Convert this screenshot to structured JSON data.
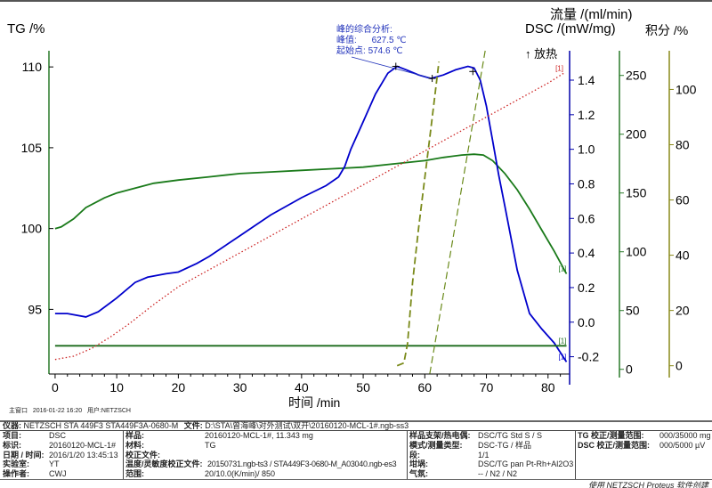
{
  "chart_data": {
    "type": "line",
    "xlabel": "时间 /min",
    "xlim": [
      -1,
      83.5
    ],
    "xticks": [
      0,
      10,
      20,
      30,
      40,
      50,
      60,
      70,
      80
    ],
    "axes": {
      "tg": {
        "label": "TG /%",
        "lim": [
          91,
          111
        ],
        "ticks": [
          95,
          100,
          105,
          110
        ],
        "color": "#000000"
      },
      "dsc": {
        "label": "DSC /(mW/mg)",
        "lim": [
          -0.3,
          1.57
        ],
        "ticks": [
          -0.2,
          0.0,
          0.2,
          0.4,
          0.6,
          0.8,
          1.0,
          1.2,
          1.4
        ],
        "color": "#0000aa",
        "exo_label": "↑ 放热"
      },
      "flow": {
        "label": "流量 /(ml/min)",
        "lim": [
          -4,
          271
        ],
        "ticks": [
          0,
          50,
          100,
          150,
          200,
          250
        ],
        "color": "#2a7a2a"
      },
      "integral": {
        "label": "积分 /%",
        "lim": [
          -3,
          114
        ],
        "ticks": [
          0,
          20,
          40,
          60,
          80,
          100
        ],
        "color": "#8a8a1a"
      }
    },
    "series": [
      {
        "name": "TG",
        "axis": "tg",
        "color": "#1a7a1a",
        "style": "solid",
        "marker": "[1]",
        "x": [
          0,
          1,
          3,
          5,
          8,
          10,
          13,
          16,
          20,
          25,
          30,
          35,
          40,
          45,
          50,
          55,
          60,
          63,
          66,
          68,
          69.5,
          71,
          73,
          75,
          77,
          79,
          81,
          83
        ],
        "y": [
          100,
          100.1,
          100.6,
          101.3,
          101.9,
          102.2,
          102.5,
          102.8,
          103.0,
          103.2,
          103.4,
          103.5,
          103.6,
          103.7,
          103.8,
          104.0,
          104.2,
          104.4,
          104.55,
          104.6,
          104.55,
          104.2,
          103.4,
          102.4,
          101.2,
          99.9,
          98.6,
          97.2
        ]
      },
      {
        "name": "DSC",
        "axis": "dsc",
        "color": "#0000cc",
        "style": "solid",
        "marker": "[1]",
        "x": [
          0,
          2,
          5,
          7,
          10,
          13,
          15,
          18,
          20,
          23,
          25,
          30,
          35,
          40,
          44,
          46,
          47,
          48,
          50,
          52,
          54,
          55.5,
          57,
          59,
          61,
          63,
          65,
          67,
          68,
          69,
          70,
          71,
          72,
          73,
          75,
          77,
          79,
          81,
          83
        ],
        "y": [
          0.05,
          0.05,
          0.03,
          0.06,
          0.14,
          0.23,
          0.26,
          0.28,
          0.29,
          0.34,
          0.38,
          0.5,
          0.62,
          0.72,
          0.79,
          0.84,
          0.9,
          1.0,
          1.16,
          1.32,
          1.44,
          1.48,
          1.46,
          1.43,
          1.41,
          1.43,
          1.46,
          1.48,
          1.47,
          1.4,
          1.25,
          1.05,
          0.85,
          0.67,
          0.3,
          0.05,
          -0.04,
          -0.12,
          -0.23
        ]
      },
      {
        "name": "流量",
        "axis": "flow",
        "color": "#1a6a1a",
        "style": "solid",
        "marker": "[1]",
        "x": [
          0,
          83
        ],
        "y": [
          20,
          20
        ]
      },
      {
        "name": "温度",
        "axis": "tg",
        "color": "#cc2222",
        "style": "dotted",
        "marker": "[1]",
        "x": [
          0,
          3,
          6,
          9,
          12,
          16,
          20,
          30,
          40,
          50,
          60,
          70,
          80,
          82.5
        ],
        "y": [
          91.9,
          92.1,
          92.6,
          93.3,
          94.1,
          95.3,
          96.4,
          98.5,
          100.6,
          102.7,
          104.8,
          106.9,
          109.0,
          109.6
        ]
      },
      {
        "name": "积分",
        "axis": "integral",
        "color": "#7a8a1a",
        "style": "dashed",
        "marker": "",
        "x": [
          55.5,
          56.6,
          57.2,
          58,
          59,
          60,
          61,
          62.3
        ],
        "y": [
          0,
          1,
          8,
          30,
          50,
          68,
          86,
          110
        ]
      }
    ],
    "annotation": {
      "title": "峰的综合分析:",
      "peak_label": "峰值:",
      "peak_value": "627.5 ℃",
      "onset_label": "起始点:",
      "onset_value": "574.6 ℃",
      "peak_time": 61.2,
      "onset_time": 55.3
    }
  },
  "header": {
    "window": "主窗口",
    "datetime": "2016-01-22 16:20",
    "user_label": "用户:",
    "user": "NETZSCH"
  },
  "info": {
    "instrument_label": "仪器:",
    "instrument": "NETZSCH STA 449F3 STA449F3A-0680-M",
    "file_label": "文件:",
    "file": "D:\\STA\\曾海峰\\对外测试\\双开\\20160120-MCL-1#.ngb-ss3",
    "col1": [
      {
        "k": "项目:",
        "v": "DSC"
      },
      {
        "k": "标识:",
        "v": "20160120-MCL-1#"
      },
      {
        "k": "日期 / 时间:",
        "v": "2016/1/20 13:45:13"
      },
      {
        "k": "实验室:",
        "v": "YT"
      },
      {
        "k": "操作者:",
        "v": "CWJ"
      }
    ],
    "col2": [
      {
        "k": "样品:",
        "v": "20160120-MCL-1#, 11.343 mg"
      },
      {
        "k": "材料:",
        "v": "TG"
      },
      {
        "k": "校正文件:",
        "v": ""
      },
      {
        "k": "温度/灵敏度校正文件:",
        "v": "20150731.ngb-ts3 / STA449F3-0680-M_A03040.ngb-es3"
      },
      {
        "k": "范围:",
        "v": "20/10.0(K/min)/ 850"
      }
    ],
    "col3": [
      {
        "k": "样品支架/热电偶:",
        "v": "DSC/TG Std S / S"
      },
      {
        "k": "模式/测量类型:",
        "v": "DSC-TG / 样品"
      },
      {
        "k": "段:",
        "v": "1/1"
      },
      {
        "k": "坩埚:",
        "v": "DSC/TG pan Pt-Rh+Al2O3"
      },
      {
        "k": "气氛:",
        "v": "-- / N2 / N2"
      }
    ],
    "col4": [
      {
        "k": "TG 校正/测量范围:",
        "v": "000/35000 mg"
      },
      {
        "k": "DSC 校正/测量范围:",
        "v": "000/5000 µV"
      }
    ],
    "footer": "使用 NETZSCH Proteus 软件创建"
  }
}
